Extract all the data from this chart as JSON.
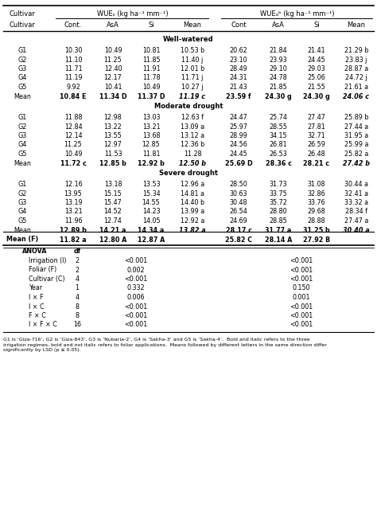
{
  "wue_s_label": "WUEₛ (kg ha⁻¹ mm⁻¹)",
  "wue_ab_label": "WUEₐᵇ (kg ha⁻¹ mm⁻¹)",
  "col_headers_sub": [
    "Cultivar",
    "Cont.",
    "AsA",
    "Si",
    "Mean",
    "Cont",
    "AsA",
    "Si",
    "Mean"
  ],
  "sections": [
    {
      "header": "Well-watered",
      "rows": [
        [
          "G1",
          "10.30",
          "10.49",
          "10.81",
          "10.53 b",
          "20.62",
          "21.84",
          "21.41",
          "21.29 b"
        ],
        [
          "G2",
          "11.10",
          "11.25",
          "11.85",
          "11.40 j",
          "23.10",
          "23.93",
          "24.45",
          "23.83 j"
        ],
        [
          "G3",
          "11.71",
          "12.40",
          "11.91",
          "12.01 b",
          "28.49",
          "29.10",
          "29.03",
          "28.87 a"
        ],
        [
          "G4",
          "11.19",
          "12.17",
          "11.78",
          "11.71 j",
          "24.31",
          "24.78",
          "25.06",
          "24.72 j"
        ],
        [
          "G5",
          "9.92",
          "10.41",
          "10.49",
          "10.27 j",
          "21.43",
          "21.85",
          "21.55",
          "21.61 a"
        ],
        [
          "Mean",
          "10.84 E",
          "11.34 D",
          "11.37 D",
          "11.19 c",
          "23.59 f",
          "24.30 g",
          "24.30 g",
          "24.06 c"
        ]
      ],
      "mean_bold_italic": [
        false,
        false,
        false,
        true,
        false,
        false,
        false,
        true
      ],
      "mean_bold": [
        true,
        true,
        true,
        false,
        true,
        true,
        true,
        false
      ]
    },
    {
      "header": "Moderate drought",
      "rows": [
        [
          "G1",
          "11.88",
          "12.98",
          "13.03",
          "12.63 f",
          "24.47",
          "25.74",
          "27.47",
          "25.89 b"
        ],
        [
          "G2",
          "12.84",
          "13.22",
          "13.21",
          "13.09 a",
          "25.97",
          "28.55",
          "27.81",
          "27.44 a"
        ],
        [
          "G3",
          "12.14",
          "13.55",
          "13.68",
          "13.12 a",
          "28.99",
          "34.15",
          "32.71",
          "31.95 a"
        ],
        [
          "G4",
          "11.25",
          "12.97",
          "12.85",
          "12.36 b",
          "24.56",
          "26.81",
          "26.59",
          "25.99 a"
        ],
        [
          "G5",
          "10.49",
          "11.53",
          "11.81",
          "11.28",
          "24.45",
          "26.53",
          "26.48",
          "25.82 a"
        ],
        [
          "Mean",
          "11.72 c",
          "12.85 b",
          "12.92 b",
          "12.50 b",
          "25.69 D",
          "28.36 c",
          "28.21 c",
          "27.42 b"
        ]
      ],
      "mean_bold_italic": [
        false,
        false,
        false,
        true,
        false,
        false,
        false,
        true
      ],
      "mean_bold": [
        true,
        true,
        true,
        false,
        true,
        true,
        true,
        false
      ]
    },
    {
      "header": "Severe drought",
      "rows": [
        [
          "G1",
          "12.16",
          "13.18",
          "13.53",
          "12.96 a",
          "28.50",
          "31.73",
          "31.08",
          "30.44 a"
        ],
        [
          "G2",
          "13.95",
          "15.15",
          "15.34",
          "14.81 a",
          "30.63",
          "33.75",
          "32.86",
          "32.41 a"
        ],
        [
          "G3",
          "13.19",
          "15.47",
          "14.55",
          "14.40 b",
          "30.48",
          "35.72",
          "33.76",
          "33.32 a"
        ],
        [
          "G4",
          "13.21",
          "14.52",
          "14.23",
          "13.99 a",
          "26.54",
          "28.80",
          "29.68",
          "28.34 f"
        ],
        [
          "G5",
          "11.96",
          "12.74",
          "14.05",
          "12.92 a",
          "24.69",
          "28.85",
          "28.88",
          "27.47 a"
        ],
        [
          "Mean",
          "12.89 b",
          "14.21 a",
          "14.34 a",
          "13.82 a",
          "28.17 c",
          "31.77 a",
          "31.25 b",
          "30.40 a"
        ]
      ],
      "mean_bold_italic": [
        false,
        false,
        false,
        true,
        false,
        false,
        false,
        true
      ],
      "mean_bold": [
        true,
        true,
        true,
        false,
        true,
        true,
        true,
        false
      ]
    }
  ],
  "mean_f_row": [
    "Mean (F)",
    "11.82 a",
    "12.80 A",
    "12.87 A",
    "",
    "25.82 C",
    "28.14 A",
    "27.92 B",
    ""
  ],
  "anova_rows": [
    [
      "Irrigation (I)",
      "2",
      "<0.001",
      "<0.001"
    ],
    [
      "Foliar (F)",
      "2",
      "0.002",
      "<0.001"
    ],
    [
      "Cultivar (C)",
      "4",
      "<0.001",
      "<0.001"
    ],
    [
      "Year",
      "1",
      "0.332",
      "0.150"
    ],
    [
      "I × F",
      "4",
      "0.006",
      "0.001"
    ],
    [
      "I × C",
      "8",
      "<0.001",
      "<0.001"
    ],
    [
      "F × C",
      "8",
      "<0.001",
      "<0.001"
    ],
    [
      "I × F × C",
      "16",
      "<0.001",
      "<0.001"
    ]
  ],
  "footnote": "G1 is ‘Giza-716’, G2 is ‘Giza-843’, G3 is ‘Nubaria-2’, G4 is ‘Sakha-3’ and G5 is ‘Sakha-4’.  Bold and italic refers to the three irrigation regimes, bold and not italic refers to foliar applications.  Means followed by different letters in the same direction differ significantly by LSD (p ≤ 0.05)."
}
